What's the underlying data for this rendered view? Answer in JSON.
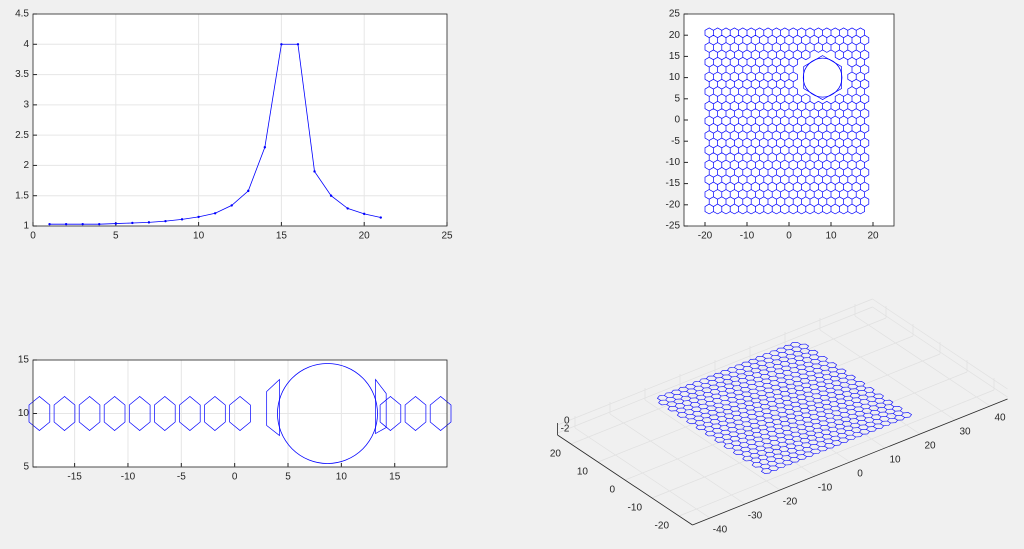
{
  "chart_data": [
    {
      "type": "line",
      "x": [
        1,
        2,
        3,
        4,
        5,
        6,
        7,
        8,
        9,
        10,
        11,
        12,
        13,
        14,
        15,
        16,
        17,
        18,
        19,
        20,
        21
      ],
      "values": [
        1.03,
        1.03,
        1.03,
        1.03,
        1.04,
        1.05,
        1.06,
        1.08,
        1.11,
        1.15,
        1.21,
        1.34,
        1.58,
        2.3,
        4,
        4,
        1.9,
        1.5,
        1.29,
        1.2,
        1.14
      ],
      "color": "#0000ff",
      "xlim": [
        0,
        25
      ],
      "xticks": [
        0,
        5,
        10,
        15,
        20,
        25
      ],
      "ylim": [
        1,
        4.5
      ],
      "yticks": [
        1,
        1.5,
        2,
        2.5,
        3,
        3.5,
        4,
        4.5
      ],
      "grid": true
    },
    {
      "type": "mesh",
      "color": "#0000ff",
      "xlim": [
        -25,
        25
      ],
      "xticks": [
        -20,
        -10,
        0,
        10,
        20
      ],
      "ylim": [
        -25,
        25
      ],
      "yticks": [
        -25,
        -20,
        -15,
        -10,
        -5,
        0,
        5,
        10,
        15,
        20,
        25
      ],
      "grid": false
    },
    {
      "type": "mesh",
      "color": "#0000ff",
      "xlim": [
        -18.9,
        19.9
      ],
      "xticks": [
        -15,
        -10,
        -5,
        0,
        5,
        10,
        15
      ],
      "ylim": [
        5,
        15
      ],
      "yticks": [
        5,
        10,
        15
      ],
      "grid": true
    },
    {
      "type": "mesh3d",
      "color": "#0000ff",
      "xlim": [
        -45,
        45
      ],
      "xticks": [
        -40,
        -30,
        -20,
        -10,
        0,
        10,
        20,
        30,
        40
      ],
      "ylim": [
        -25,
        25
      ],
      "yticks": [
        -20,
        -10,
        0,
        10,
        20
      ],
      "zlim": [
        -2.5,
        0.5
      ],
      "zticks": [
        -2,
        0
      ],
      "grid": true
    }
  ]
}
